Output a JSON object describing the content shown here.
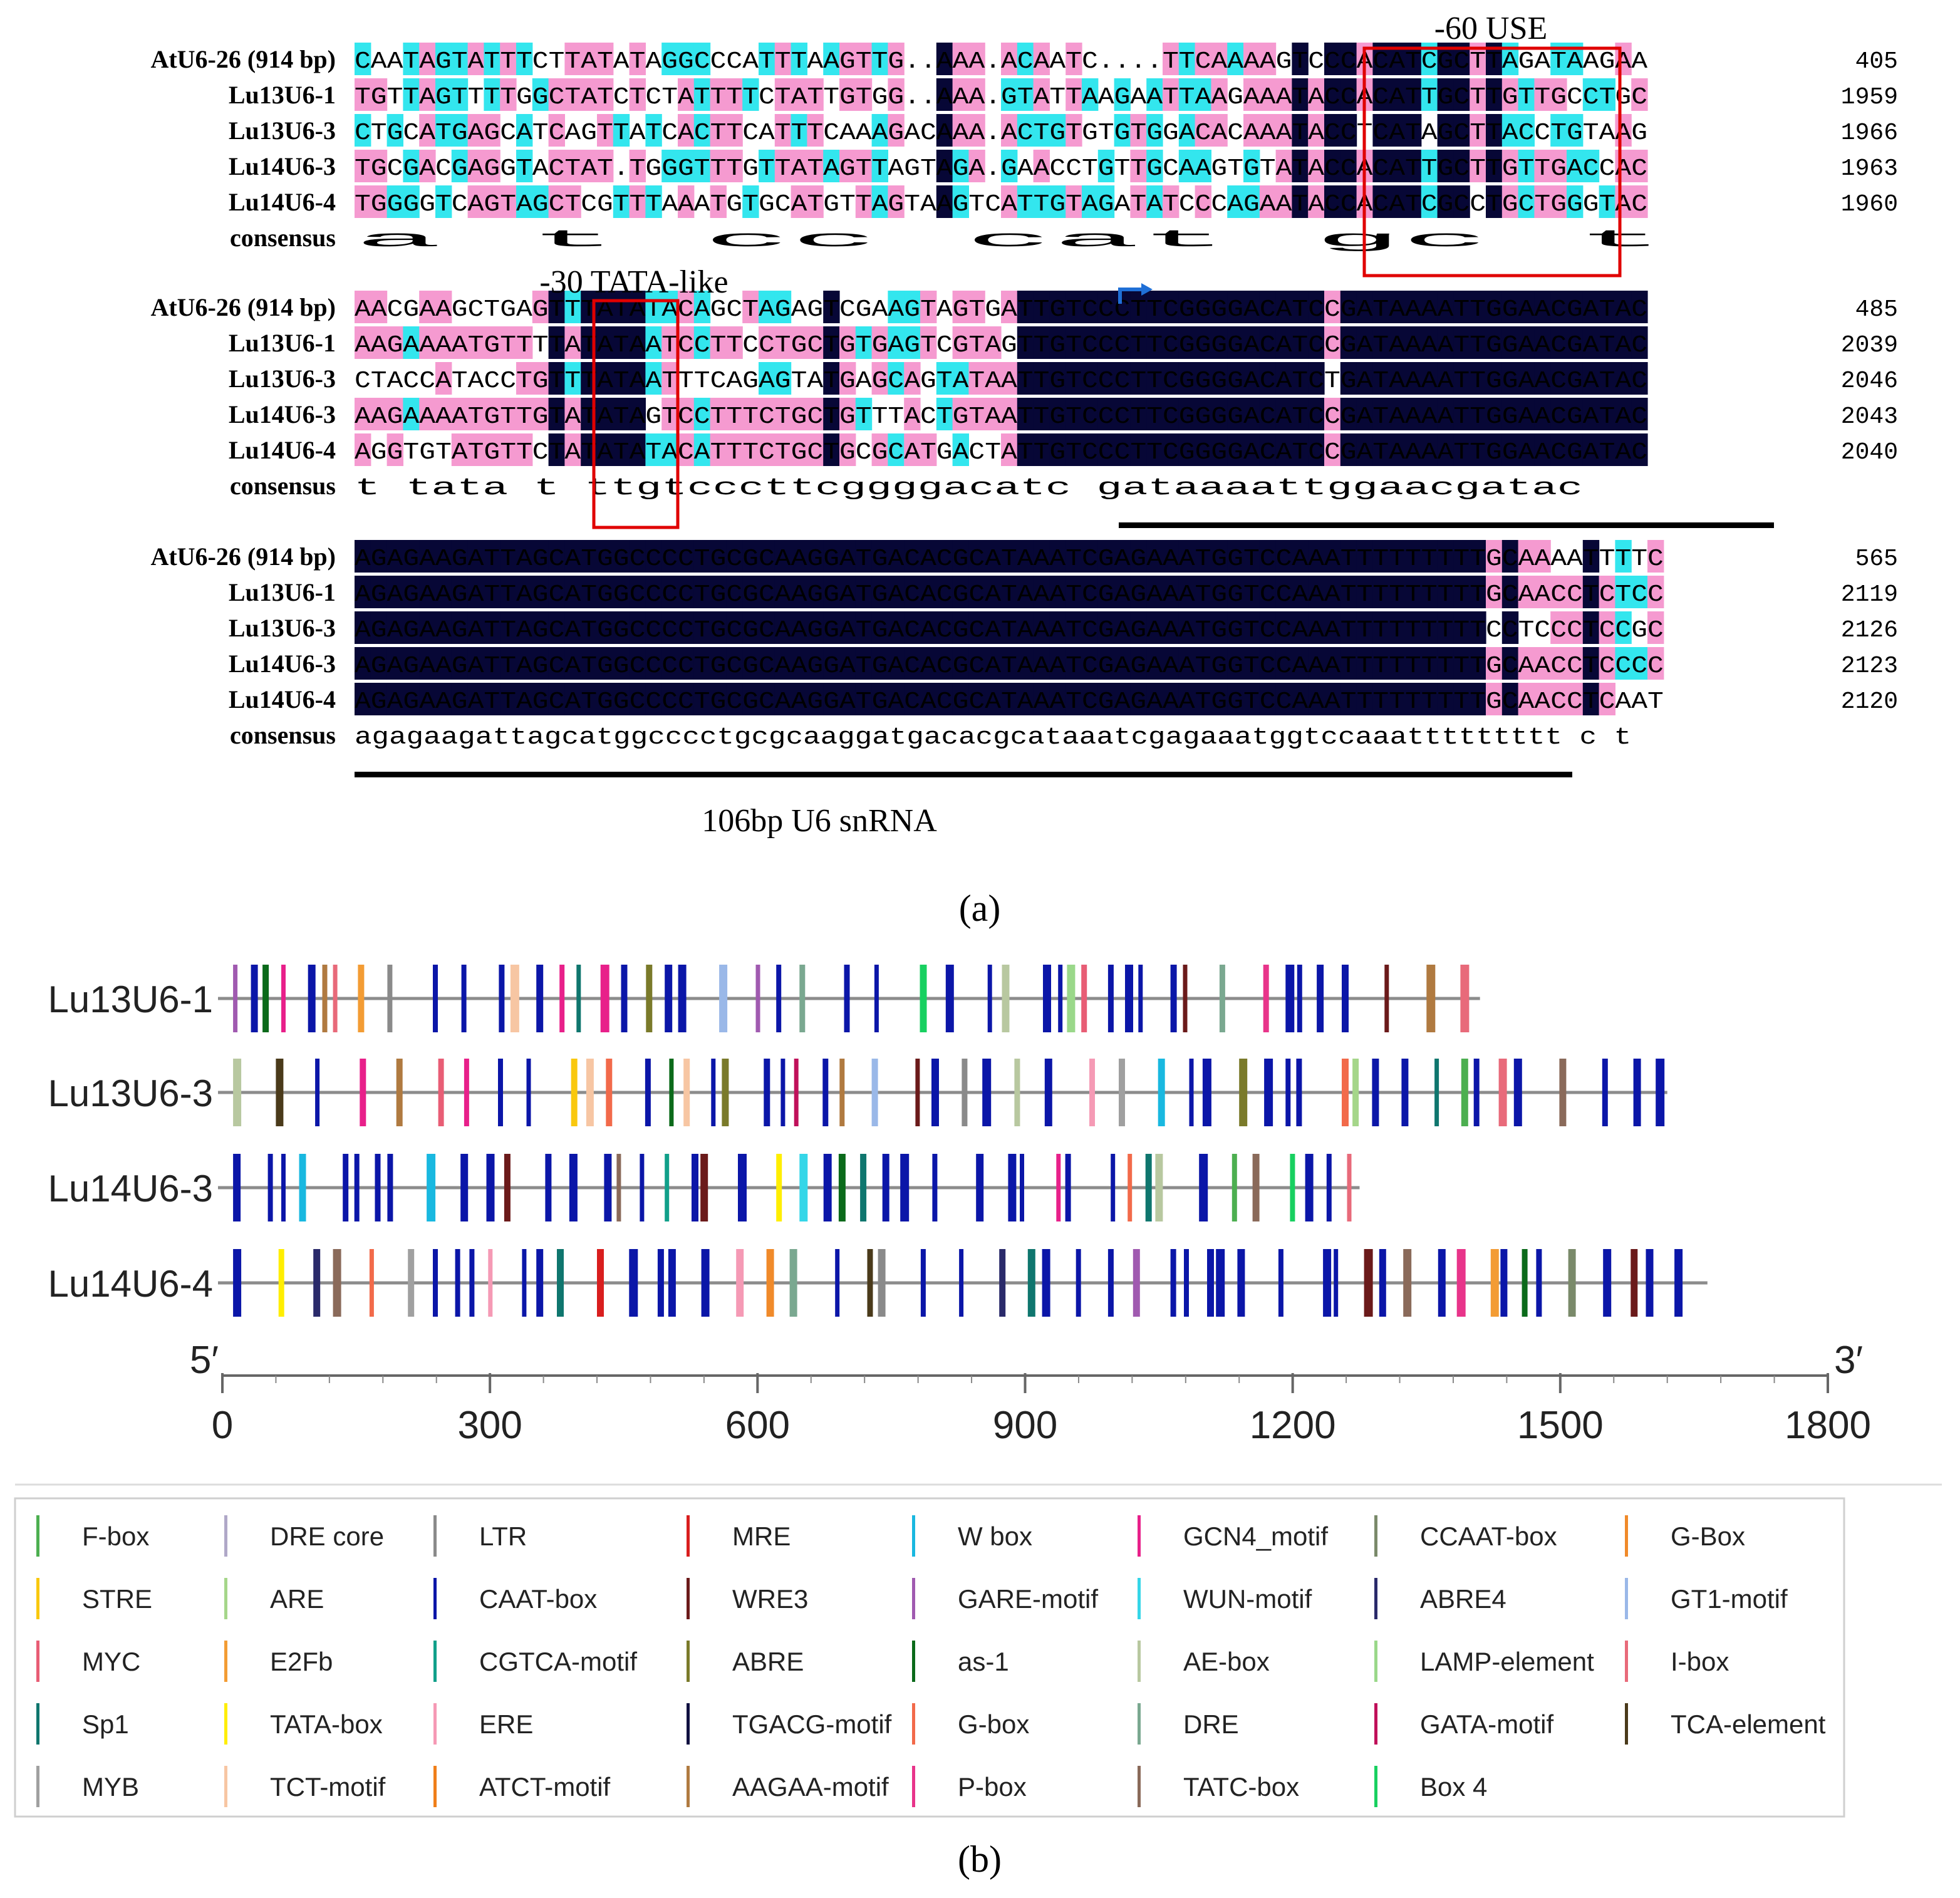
{
  "panel_a": {
    "label": "(a)",
    "annotations": {
      "use": "-60 USE",
      "tata": "-30 TATA-like",
      "snrna": "106bp U6 snRNA"
    },
    "blocks": [
      {
        "rows": [
          {
            "name": "AtU6-26 (914 bp)",
            "seq": "CAATAGTATTTCTTATATAGGCCCATTTAAGTTG..AAA.ACAATC....TTCAAAAGTCCCACATCGCTTAGATAAGAA",
            "end": "405"
          },
          {
            "name": "Lu13U6-1",
            "seq": "TGTTAGTTTTGGCTATCTCTATTTTCTATTGTGG..AAA.GTATTAAGAATTAAGAAATACCACATTGCTTGTTGCCTGC",
            "end": "1959"
          },
          {
            "name": "Lu13U6-3",
            "seq": "CTGCATGAGCATCAGTTATCACTTCATTTCAAAGACAAA.ACTGTGTGTGGACACAAATACCTCATAGCTTACCTGTAAG",
            "end": "1966"
          },
          {
            "name": "Lu14U6-3",
            "seq": "TGCGACGAGGTACTAT.TGGGTTTGTTATAGTTAGTAGA.GAACCTGTTGCAAGTGTATACCACATTGCTTGTTGACCAC",
            "end": "1963"
          },
          {
            "name": "Lu14U6-4",
            "seq": "TGGGGTCAGTAGCTCGTTTAAATGTGCATGTTAGTAAGTCATTGTAGATATCCCAGAATACCACATCGCCTGCTGGGTAC",
            "end": "1960"
          }
        ],
        "consensus": "                                    a                      t cc cat gc t         "
      },
      {
        "rows": [
          {
            "name": "AtU6-26 (914 bp)",
            "seq": "AACGAAGCTGAGTTTATATACAGCTAGAGTCGAAGTAGTGATTGTCCCTTCGGGGACATCCGATAAAATTGGAACGATAC",
            "end": "485"
          },
          {
            "name": "Lu13U6-1",
            "seq": "AAGAAAATGTTTTATATAATCCTTCCTGCTGTGAGTCGTAGTTGTCCCTTCGGGGACATCCGATAAAATTGGAACGATAC",
            "end": "2039"
          },
          {
            "name": "Lu13U6-3",
            "seq": "CTACCATACCTGTTTATAATTTCAGAGTATGAGCAGTATAATTGTCCCTTCGGGGACATCTGATAAAATTGGAACGATAC",
            "end": "2046"
          },
          {
            "name": "Lu14U6-3",
            "seq": "AAGAAAATGTTGTATATAGTCCTTTCTGCTGTTTACTGTAATTGTCCCTTCGGGGACATCCGATAAAATTGGAACGATAC",
            "end": "2043"
          },
          {
            "name": "Lu14U6-4",
            "seq": "AGGTGTATGTTCTATATATACATTTCTGCTGCGCATGACTATTGTCCCTTCGGGGACATCCGATAAAATTGGAACGATAC",
            "end": "2040"
          }
        ],
        "consensus": "           t tata         t          ttgtcccttcggggacatc gataaaattggaacgatac"
      },
      {
        "rows": [
          {
            "name": "AtU6-26 (914 bp)",
            "seq": "AGAGAAGATTAGCATGGCCCCTGCGCAAGGATGACACGCATAAATCGAGAAATGGTCCAAATTTTTTTTTGCAAAATTTTC",
            "end": "565"
          },
          {
            "name": "Lu13U6-1",
            "seq": "AGAGAAGATTAGCATGGCCCCTGCGCAAGGATGACACGCATAAATCGAGAAATGGTCCAAATTTTTTTTTGCAACCTCTCC",
            "end": "2119"
          },
          {
            "name": "Lu13U6-3",
            "seq": "AGAGAAGATTAGCATGGCCCCTGCGCAAGGATGACACGCATAAATCGAGAAATGGTCCAAATTTTTTTTTCCTCCCTCCGC",
            "end": "2126"
          },
          {
            "name": "Lu14U6-3",
            "seq": "AGAGAAGATTAGCATGGCCCCTGCGCAAGGATGACACGCATAAATCGAGAAATGGTCCAAATTTTTTTTTGCAACCTCCCC",
            "end": "2123"
          },
          {
            "name": "Lu14U6-4",
            "seq": "AGAGAAGATTAGCATGGCCCCTGCGCAAGGATGACACGCATAAATCGAGAAATGGTCCAAATTTTTTTTTGCAACCTCAAT",
            "end": "2120"
          }
        ],
        "consensus": "agagaagattagcatggcccctgcgcaaggatgacacgcataaatcgagaaatggtccaaattttttttt c   t   "
      }
    ],
    "consensus_label": "consensus"
  },
  "panel_b": {
    "label": "(b)",
    "axis": {
      "min": 0,
      "max": 1800,
      "ticks": [
        0,
        300,
        600,
        900,
        1200,
        1500,
        1800
      ],
      "left_label": "5′",
      "right_label": "3′"
    },
    "tracks": [
      {
        "name": "Lu13U6-1",
        "length": 1410
      },
      {
        "name": "Lu13U6-3",
        "length": 1620
      },
      {
        "name": "Lu14U6-3",
        "length": 1275
      },
      {
        "name": "Lu14U6-4",
        "length": 1665
      }
    ],
    "legend": [
      {
        "label": "F-box",
        "color": "#4caf50"
      },
      {
        "label": "STRE",
        "color": "#f9c80e"
      },
      {
        "label": "MYC",
        "color": "#e85d75"
      },
      {
        "label": "Sp1",
        "color": "#0f766e"
      },
      {
        "label": "MYB",
        "color": "#a0a0a0"
      },
      {
        "label": "DRE core",
        "color": "#b0a8c8"
      },
      {
        "label": "ARE",
        "color": "#a5d68a"
      },
      {
        "label": "E2Fb",
        "color": "#f39c34"
      },
      {
        "label": "TATA-box",
        "color": "#ffee00"
      },
      {
        "label": "TCT-motif",
        "color": "#f7c6a3"
      },
      {
        "label": "LTR",
        "color": "#8a8a8a"
      },
      {
        "label": "CAAT-box",
        "color": "#0b16a8"
      },
      {
        "label": "CGTCA-motif",
        "color": "#11a08a"
      },
      {
        "label": "ERE",
        "color": "#f59ab5"
      },
      {
        "label": "ATCT-motif",
        "color": "#f07f1a"
      },
      {
        "label": "MRE",
        "color": "#d91e1e"
      },
      {
        "label": "WRE3",
        "color": "#6b1a1a"
      },
      {
        "label": "ABRE",
        "color": "#7a7a2a"
      },
      {
        "label": "TGACG-motif",
        "color": "#101040"
      },
      {
        "label": "AAGAA-motif",
        "color": "#b07a40"
      },
      {
        "label": "W box",
        "color": "#19b8e0"
      },
      {
        "label": "GARE-motif",
        "color": "#a05ab0"
      },
      {
        "label": "as-1",
        "color": "#0b6a1a"
      },
      {
        "label": "G-box",
        "color": "#f26a4a"
      },
      {
        "label": "P-box",
        "color": "#e8348a"
      },
      {
        "label": "GCN4_motif",
        "color": "#e8208a"
      },
      {
        "label": "WUN-motif",
        "color": "#35d6e8"
      },
      {
        "label": "AE-box",
        "color": "#b8c8a0"
      },
      {
        "label": "DRE",
        "color": "#7aa890"
      },
      {
        "label": "TATC-box",
        "color": "#8a6a5a"
      },
      {
        "label": "CCAAT-box",
        "color": "#7a8a6a"
      },
      {
        "label": "ABRE4",
        "color": "#2a2a6a"
      },
      {
        "label": "LAMP-element",
        "color": "#9ad88a"
      },
      {
        "label": "GATA-motif",
        "color": "#c0105a"
      },
      {
        "label": "Box 4",
        "color": "#18d060"
      },
      {
        "label": "G-Box",
        "color": "#f08a2a"
      },
      {
        "label": "GT1-motif",
        "color": "#9ab8e8"
      },
      {
        "label": "I-box",
        "color": "#e86a7a"
      },
      {
        "label": "TCA-element",
        "color": "#4a3a1a"
      }
    ]
  }
}
